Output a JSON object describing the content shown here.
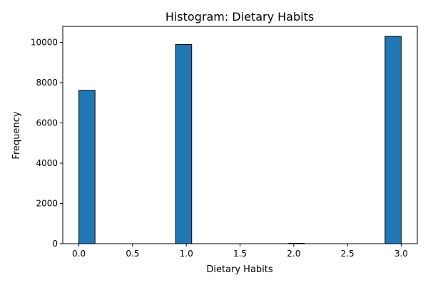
{
  "chart_data": {
    "type": "bar",
    "title": "Histogram: Dietary Habits",
    "xlabel": "Dietary Habits",
    "ylabel": "Frequency",
    "xlim": [
      -0.15,
      3.15
    ],
    "ylim": [
      0,
      10800
    ],
    "xticks": [
      0.0,
      0.5,
      1.0,
      1.5,
      2.0,
      2.5,
      3.0
    ],
    "xtick_labels": [
      "0.0",
      "0.5",
      "1.0",
      "1.5",
      "2.0",
      "2.5",
      "3.0"
    ],
    "yticks": [
      0,
      2000,
      4000,
      6000,
      8000,
      10000
    ],
    "ytick_labels": [
      "0",
      "2000",
      "4000",
      "6000",
      "8000",
      "10000"
    ],
    "bins": 20,
    "bin_width": 0.15,
    "bars": [
      {
        "start": 0.0,
        "end": 0.15,
        "value": 7620
      },
      {
        "start": 0.9,
        "end": 1.05,
        "value": 9900
      },
      {
        "start": 1.95,
        "end": 2.1,
        "value": 20
      },
      {
        "start": 2.85,
        "end": 3.0,
        "value": 10300
      }
    ],
    "grid": false,
    "legend": "none",
    "bar_color": "#1f77b4",
    "edge_color": "#000000"
  }
}
